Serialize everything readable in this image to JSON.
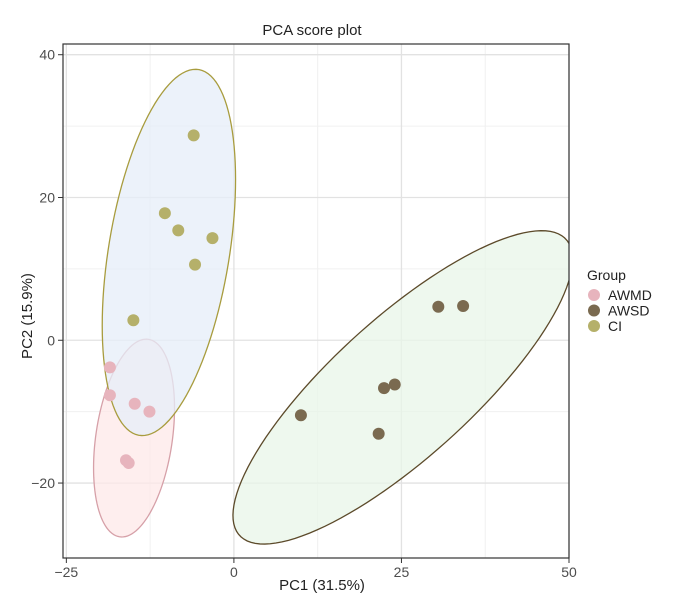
{
  "chart_data": {
    "type": "scatter",
    "title": "PCA score plot",
    "xlabel": "PC1 (31.5%)",
    "ylabel": "PC2 (15.9%)",
    "xlim": [
      -25.5,
      50
    ],
    "ylim": [
      -30.5,
      41.5
    ],
    "x_ticks": [
      -25,
      0,
      25,
      50
    ],
    "x_tick_labels": [
      "−25",
      "0",
      "25",
      "50"
    ],
    "y_ticks": [
      -20,
      0,
      20,
      40
    ],
    "y_tick_labels": [
      "−20",
      "0",
      "20",
      "40"
    ],
    "grid": true,
    "legend": {
      "title": "Group",
      "position": "right",
      "entries": [
        "AWMD",
        "AWSD",
        "CI"
      ]
    },
    "series": [
      {
        "name": "AWMD",
        "point_color": "#e7b4bd",
        "ellipse_fill": "#fde8e8",
        "ellipse_stroke": "#d6a0a8",
        "points": [
          {
            "x": -18.5,
            "y": -3.8
          },
          {
            "x": -18.5,
            "y": -7.7
          },
          {
            "x": -14.8,
            "y": -8.9
          },
          {
            "x": -12.6,
            "y": -10.0
          },
          {
            "x": -16.1,
            "y": -16.8
          },
          {
            "x": -15.7,
            "y": -17.2
          }
        ],
        "ellipse": {
          "cx": -14.9,
          "cy": -13.7,
          "semi_major": 14.0,
          "semi_minor": 5.7,
          "angle_deg": 81
        }
      },
      {
        "name": "AWSD",
        "point_color": "#7a6a50",
        "ellipse_fill": "#e8f5e8",
        "ellipse_stroke": "#5c4a2a",
        "points": [
          {
            "x": 30.5,
            "y": 4.7
          },
          {
            "x": 34.2,
            "y": 4.8
          },
          {
            "x": 22.4,
            "y": -6.7
          },
          {
            "x": 24.0,
            "y": -6.2
          },
          {
            "x": 21.6,
            "y": -13.1
          },
          {
            "x": 10.0,
            "y": -10.5
          }
        ],
        "ellipse": {
          "cx": 25.2,
          "cy": -6.6,
          "semi_major": 32.0,
          "semi_minor": 10.0,
          "angle_deg": 40
        }
      },
      {
        "name": "CI",
        "point_color": "#b5b06a",
        "ellipse_fill": "#e6eef8",
        "ellipse_stroke": "#a89c3e",
        "points": [
          {
            "x": -6.0,
            "y": 28.7
          },
          {
            "x": -10.3,
            "y": 17.8
          },
          {
            "x": -8.3,
            "y": 15.4
          },
          {
            "x": -3.2,
            "y": 14.3
          },
          {
            "x": -5.8,
            "y": 10.6
          },
          {
            "x": -15.0,
            "y": 2.8
          }
        ],
        "ellipse": {
          "cx": -9.7,
          "cy": 12.3,
          "semi_major": 26.0,
          "semi_minor": 9.0,
          "angle_deg": 80
        }
      }
    ]
  }
}
